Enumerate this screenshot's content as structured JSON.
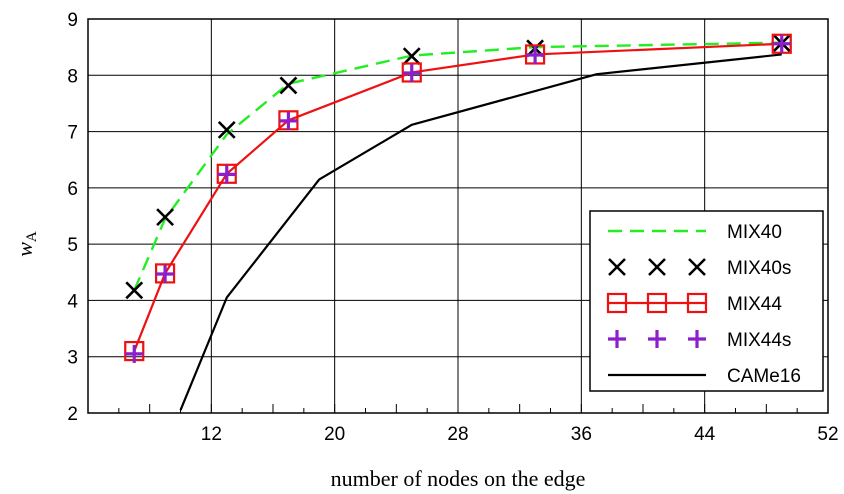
{
  "chart_data": {
    "type": "line",
    "xlabel": "number of nodes on the edge",
    "ylabel_main": "w",
    "ylabel_sub": "A",
    "xlim": [
      4,
      52
    ],
    "ylim": [
      2,
      9
    ],
    "xticks": [
      12,
      20,
      28,
      36,
      44,
      52
    ],
    "yticks": [
      2,
      3,
      4,
      5,
      6,
      7,
      8,
      9
    ],
    "grid": true,
    "legend_position": "lower-right",
    "series": [
      {
        "name": "MIX40",
        "style": "dashed",
        "color": "#22ee22",
        "marker": "none",
        "x": [
          7,
          9,
          13,
          17,
          25,
          33,
          49
        ],
        "y": [
          4.18,
          5.45,
          6.95,
          7.85,
          8.35,
          8.5,
          8.58
        ]
      },
      {
        "name": "MIX40s",
        "style": "none",
        "color": "#000000",
        "marker": "x",
        "x": [
          7,
          9,
          13,
          17,
          25,
          33,
          49
        ],
        "y": [
          4.18,
          5.48,
          7.03,
          7.82,
          8.34,
          8.48,
          8.57
        ]
      },
      {
        "name": "MIX44",
        "style": "solid",
        "color": "#ee1111",
        "marker": "square",
        "x": [
          7,
          9,
          13,
          17,
          25,
          33,
          49
        ],
        "y": [
          3.1,
          4.48,
          6.25,
          7.2,
          8.05,
          8.37,
          8.56
        ]
      },
      {
        "name": "MIX44s",
        "style": "none",
        "color": "#8b1fc9",
        "marker": "plus",
        "x": [
          7,
          9,
          13,
          17,
          25,
          33,
          49
        ],
        "y": [
          3.05,
          4.47,
          6.24,
          7.19,
          8.04,
          8.36,
          8.56
        ]
      },
      {
        "name": "CAMe16",
        "style": "solid",
        "color": "#000000",
        "marker": "none",
        "x": [
          10,
          13,
          19,
          25,
          37,
          49
        ],
        "y": [
          2.05,
          4.05,
          6.15,
          7.12,
          8.02,
          8.37
        ]
      }
    ]
  }
}
